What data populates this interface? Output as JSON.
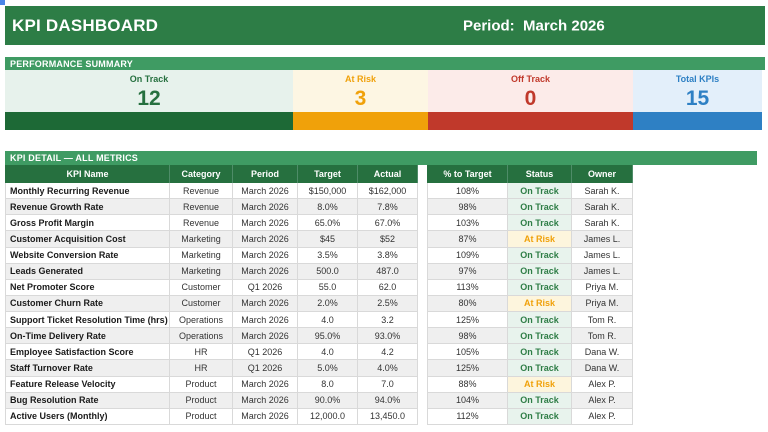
{
  "header": {
    "title": "KPI DASHBOARD",
    "period_label": "Period:  March 2026"
  },
  "sections": {
    "summary_title": "PERFORMANCE SUMMARY",
    "detail_title": "KPI DETAIL — ALL METRICS"
  },
  "summary_cards": [
    {
      "label": "On Track",
      "value": "12",
      "text_color": "#26703f",
      "bg": "#e7f2ec",
      "accent": "#1d6936"
    },
    {
      "label": "At Risk",
      "value": "3",
      "text_color": "#f0a10a",
      "bg": "#fdf6e3",
      "accent": "#f0a10a"
    },
    {
      "label": "Off Track",
      "value": "0",
      "text_color": "#c0392b",
      "bg": "#fcebe9",
      "accent": "#c0392b"
    },
    {
      "label": "Total KPIs",
      "value": "15",
      "text_color": "#2e80c4",
      "bg": "#e3effa",
      "accent": "#2e80c4"
    }
  ],
  "table": {
    "columns": [
      "KPI Name",
      "Category",
      "Period",
      "Target",
      "Actual",
      "% to Target",
      "Status",
      "Owner"
    ],
    "status_styles": {
      "On Track": {
        "color": "#2e7d46",
        "bg": "#e8f3ed"
      },
      "At Risk": {
        "color": "#f0a10a",
        "bg": "#fdf5dd"
      }
    },
    "rows": [
      {
        "kpi": "Monthly Recurring Revenue",
        "category": "Revenue",
        "period": "March 2026",
        "target": "$150,000",
        "actual": "$162,000",
        "pct": "108%",
        "status": "On Track",
        "owner": "Sarah K."
      },
      {
        "kpi": "Revenue Growth Rate",
        "category": "Revenue",
        "period": "March 2026",
        "target": "8.0%",
        "actual": "7.8%",
        "pct": "98%",
        "status": "On Track",
        "owner": "Sarah K."
      },
      {
        "kpi": "Gross Profit Margin",
        "category": "Revenue",
        "period": "March 2026",
        "target": "65.0%",
        "actual": "67.0%",
        "pct": "103%",
        "status": "On Track",
        "owner": "Sarah K."
      },
      {
        "kpi": "Customer Acquisition Cost",
        "category": "Marketing",
        "period": "March 2026",
        "target": "$45",
        "actual": "$52",
        "pct": "87%",
        "status": "At Risk",
        "owner": "James L."
      },
      {
        "kpi": "Website Conversion Rate",
        "category": "Marketing",
        "period": "March 2026",
        "target": "3.5%",
        "actual": "3.8%",
        "pct": "109%",
        "status": "On Track",
        "owner": "James L."
      },
      {
        "kpi": "Leads Generated",
        "category": "Marketing",
        "period": "March 2026",
        "target": "500.0",
        "actual": "487.0",
        "pct": "97%",
        "status": "On Track",
        "owner": "James L."
      },
      {
        "kpi": "Net Promoter Score",
        "category": "Customer",
        "period": "Q1 2026",
        "target": "55.0",
        "actual": "62.0",
        "pct": "113%",
        "status": "On Track",
        "owner": "Priya M."
      },
      {
        "kpi": "Customer Churn Rate",
        "category": "Customer",
        "period": "March 2026",
        "target": "2.0%",
        "actual": "2.5%",
        "pct": "80%",
        "status": "At Risk",
        "owner": "Priya M."
      },
      {
        "kpi": "Support Ticket Resolution Time (hrs)",
        "category": "Operations",
        "period": "March 2026",
        "target": "4.0",
        "actual": "3.2",
        "pct": "125%",
        "status": "On Track",
        "owner": "Tom R."
      },
      {
        "kpi": "On-Time Delivery Rate",
        "category": "Operations",
        "period": "March 2026",
        "target": "95.0%",
        "actual": "93.0%",
        "pct": "98%",
        "status": "On Track",
        "owner": "Tom R."
      },
      {
        "kpi": "Employee Satisfaction Score",
        "category": "HR",
        "period": "Q1 2026",
        "target": "4.0",
        "actual": "4.2",
        "pct": "105%",
        "status": "On Track",
        "owner": "Dana W."
      },
      {
        "kpi": "Staff Turnover Rate",
        "category": "HR",
        "period": "Q1 2026",
        "target": "5.0%",
        "actual": "4.0%",
        "pct": "125%",
        "status": "On Track",
        "owner": "Dana W."
      },
      {
        "kpi": "Feature Release Velocity",
        "category": "Product",
        "period": "March 2026",
        "target": "8.0",
        "actual": "7.0",
        "pct": "88%",
        "status": "At Risk",
        "owner": "Alex P."
      },
      {
        "kpi": "Bug Resolution Rate",
        "category": "Product",
        "period": "March 2026",
        "target": "90.0%",
        "actual": "94.0%",
        "pct": "104%",
        "status": "On Track",
        "owner": "Alex P."
      },
      {
        "kpi": "Active Users (Monthly)",
        "category": "Product",
        "period": "March 2026",
        "target": "12,000.0",
        "actual": "13,450.0",
        "pct": "112%",
        "status": "On Track",
        "owner": "Alex P."
      }
    ]
  }
}
